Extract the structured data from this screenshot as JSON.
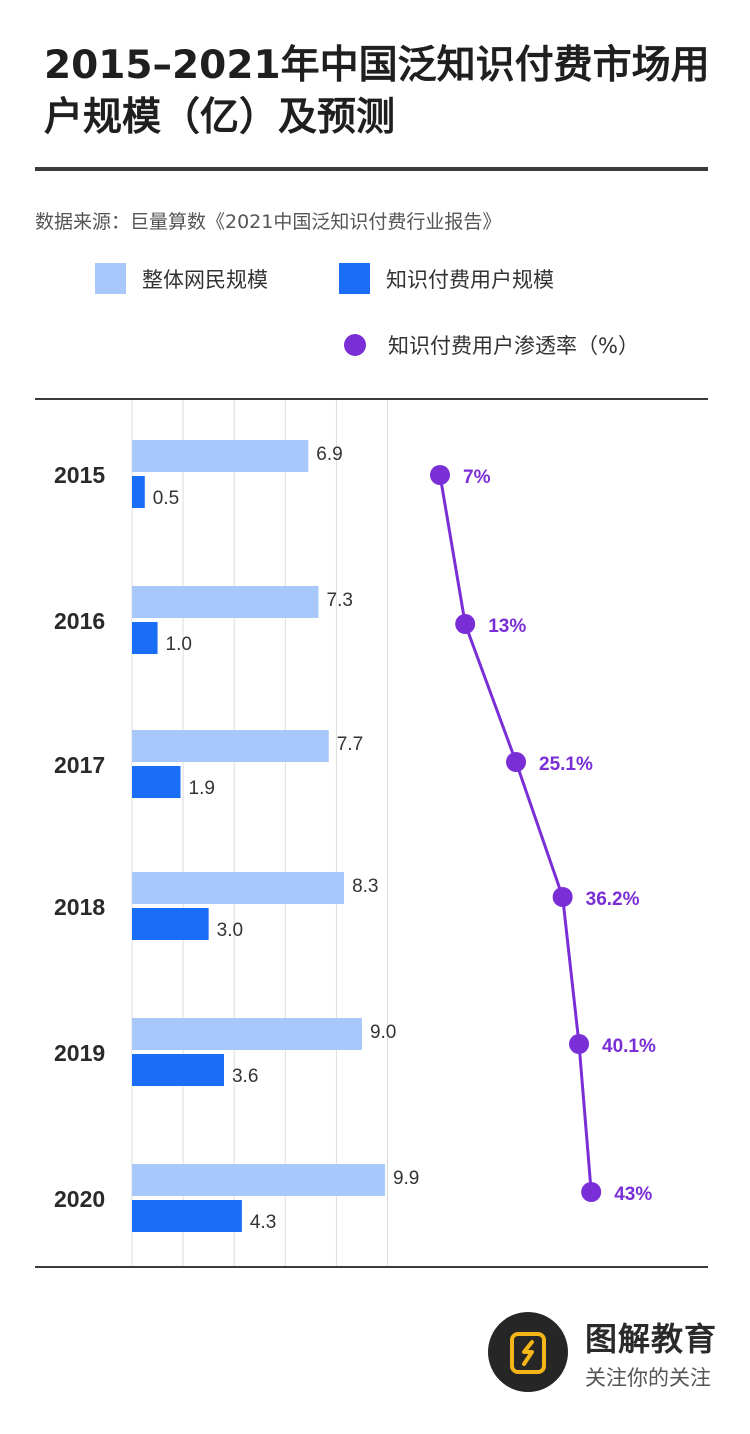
{
  "header": {
    "title": "2015–2021年中国泛知识付费市场用户规模（亿）及预测",
    "source": "数据来源：巨量算数《2021中国泛知识付费行业报告》"
  },
  "legend": {
    "total_label": "整体网民规模",
    "paid_label": "知识付费用户规模",
    "rate_label": "知识付费用户渗透率（%）"
  },
  "colors": {
    "total": "#a8c8fb",
    "paid": "#1a6ef5",
    "rate": "#7a2fd6",
    "grid": "#dddddd",
    "rule": "#3b3b3b"
  },
  "chart_data": {
    "type": "bar",
    "orientation": "horizontal",
    "categories": [
      "2015",
      "2016",
      "2017",
      "2018",
      "2019",
      "2020"
    ],
    "series": [
      {
        "name": "整体网民规模",
        "values": [
          6.9,
          7.3,
          7.7,
          8.3,
          9.0,
          9.9
        ],
        "labels": [
          "6.9",
          "7.3",
          "7.7",
          "8.3",
          "9.0",
          "9.9"
        ]
      },
      {
        "name": "知识付费用户规模",
        "values": [
          0.5,
          1.0,
          1.9,
          3.0,
          3.6,
          4.3
        ],
        "labels": [
          "0.5",
          "1.0",
          "1.9",
          "3.0",
          "3.6",
          "4.3"
        ]
      }
    ],
    "line_series": {
      "name": "知识付费用户渗透率（%）",
      "type": "line",
      "values": [
        7,
        13,
        25.1,
        36.2,
        40.1,
        43
      ],
      "labels": [
        "7%",
        "13%",
        "25.1%",
        "36.2%",
        "40.1%",
        "43%"
      ]
    },
    "xlim": [
      0,
      10
    ],
    "grid": true,
    "legend_position": "top"
  },
  "brand": {
    "name": "图解教育",
    "slogan": "关注你的关注"
  }
}
